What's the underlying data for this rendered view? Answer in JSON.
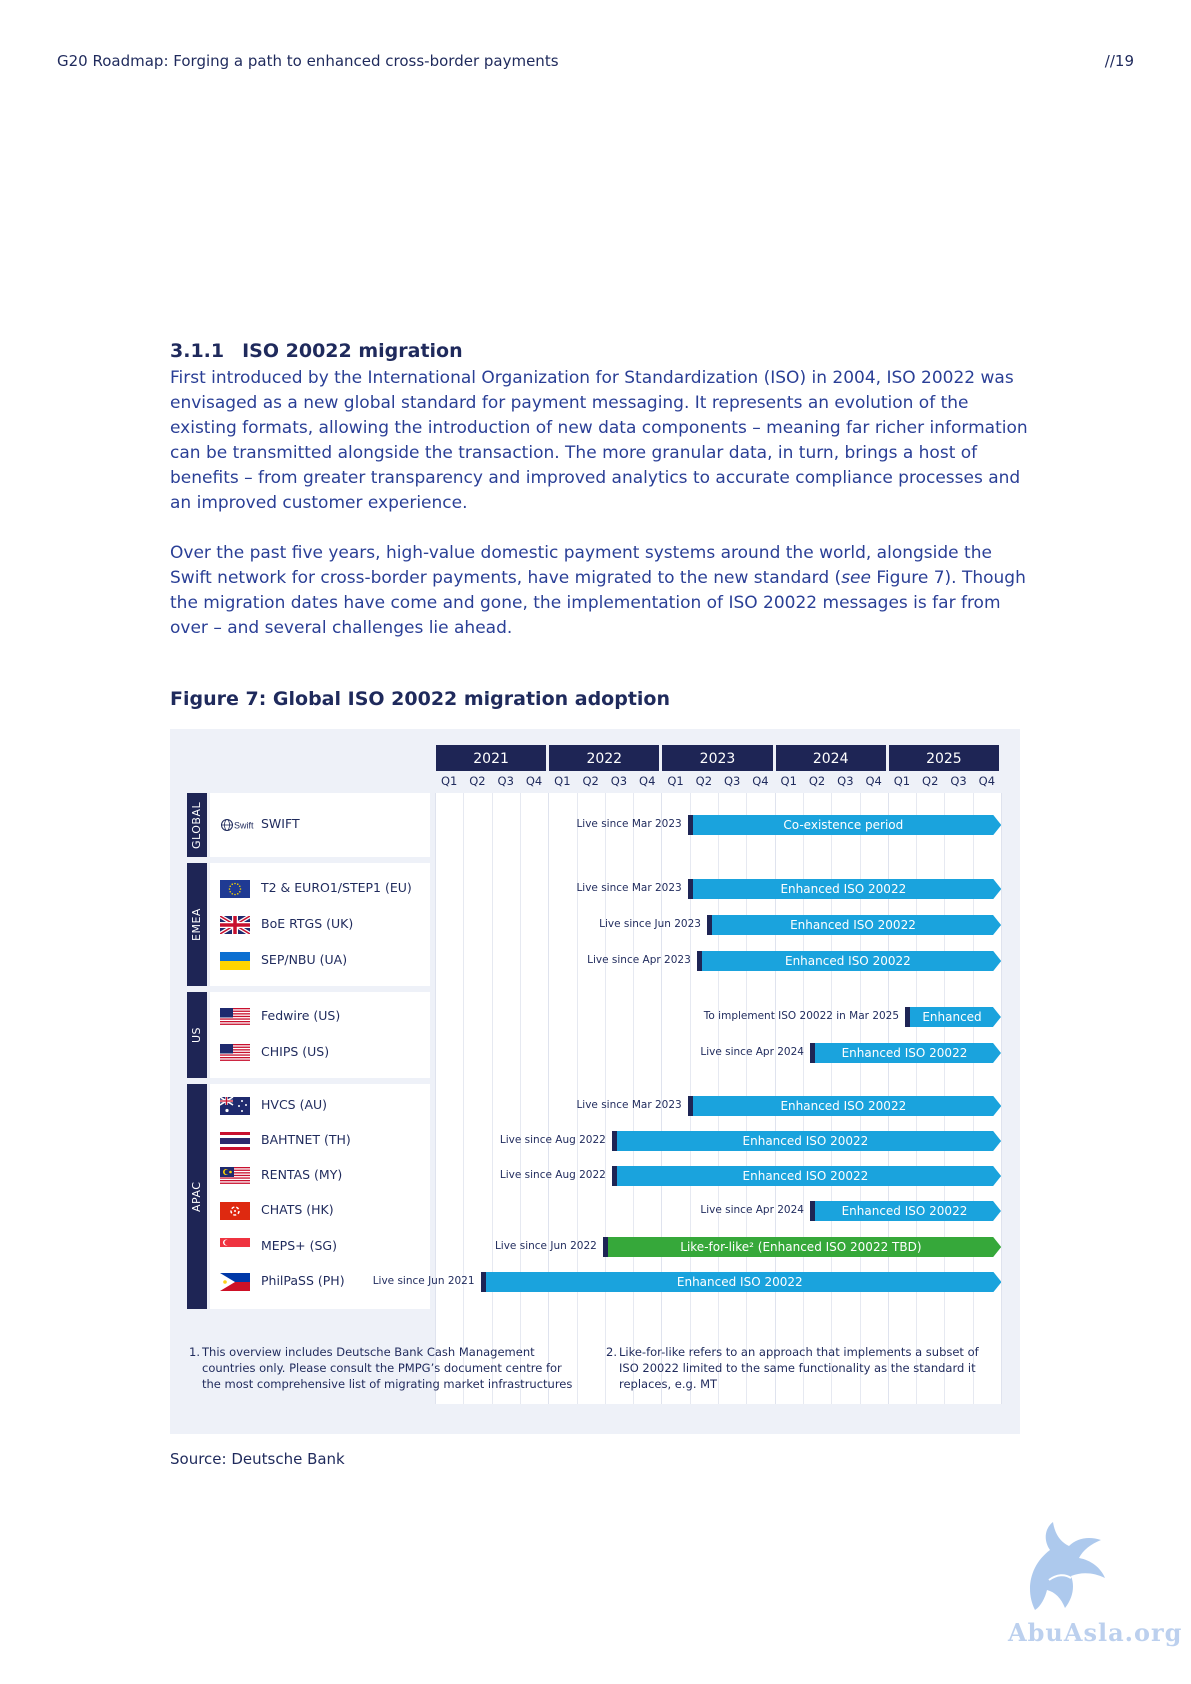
{
  "header": {
    "running_title": "G20 Roadmap: Forging a path to enhanced cross-border payments",
    "page_number": "//19"
  },
  "section": {
    "number": "3.1.1",
    "title": "ISO 20022 migration",
    "p1": "First introduced by the International Organization for Standardization (ISO) in 2004, ISO 20022 was envisaged as a new global standard for payment messaging. It represents an evolution of the existing formats, allowing the introduction of new data components – meaning far richer information can be transmitted alongside the transaction. The more granular data, in turn, brings a host of benefits – from greater transparency and improved analytics to accurate compliance processes and an improved customer experience.",
    "p2_a": "Over the past five years, high-value domestic payment systems around the world, alongside the Swift network for cross-border payments, have migrated to the new standard (",
    "p2_see": "see",
    "p2_b": " Figure 7). Though the migration dates have come and gone, the implementation of ISO 20022 messages is far from over – and several challenges lie ahead."
  },
  "figure": {
    "title": "Figure 7: Global ISO 20022 migration adoption",
    "source": "Source: Deutsche Bank",
    "footnotes": [
      {
        "num": "1.",
        "text": "This overview includes Deutsche Bank Cash Management countries only. Please consult the PMPG’s document centre for the most comprehensive list of migrating market infrastructures"
      },
      {
        "num": "2.",
        "text": "Like-for-like refers to an approach that implements a subset of ISO 20022 limited to the same functionality as the standard it replaces, e.g. MT"
      }
    ],
    "swift_logo_text": "Swift"
  },
  "colors": {
    "navy": "#1e2555",
    "blue": "#1aa3dd",
    "green": "#36a83a",
    "text": "#1f2a5c"
  },
  "chart_data": {
    "type": "gantt",
    "years": [
      "2021",
      "2022",
      "2023",
      "2024",
      "2025"
    ],
    "quarters": [
      "Q1",
      "Q2",
      "Q3",
      "Q4"
    ],
    "regions": [
      {
        "name": "GLOBAL",
        "rows": [
          0
        ]
      },
      {
        "name": "EMEA",
        "rows": [
          1,
          2,
          3
        ]
      },
      {
        "name": "US",
        "rows": [
          4,
          5
        ]
      },
      {
        "name": "APAC",
        "rows": [
          6,
          7,
          8,
          9,
          10,
          11
        ]
      }
    ],
    "rows": [
      {
        "system": "SWIFT",
        "flag": "swift-logo",
        "live_label": "Live since Mar 2023",
        "start": 2023.25,
        "end": 2026.0,
        "bar_label": "Co-existence period",
        "color": "blue"
      },
      {
        "system": "T2 & EURO1/STEP1 (EU)",
        "flag": "eu-flag",
        "live_label": "Live since Mar 2023",
        "start": 2023.25,
        "end": 2026.0,
        "bar_label": "Enhanced ISO 20022",
        "color": "blue"
      },
      {
        "system": "BoE RTGS (UK)",
        "flag": "uk-flag",
        "live_label": "Live since Jun 2023",
        "start": 2023.42,
        "end": 2026.0,
        "bar_label": "Enhanced ISO 20022",
        "color": "blue"
      },
      {
        "system": "SEP/NBU (UA)",
        "flag": "ua-flag",
        "live_label": "Live since Apr 2023",
        "start": 2023.33,
        "end": 2026.0,
        "bar_label": "Enhanced ISO 20022",
        "color": "blue"
      },
      {
        "system": "Fedwire (US)",
        "flag": "us-flag",
        "live_label": "To implement ISO 20022 in Mar 2025",
        "start": 2025.17,
        "end": 2026.0,
        "bar_label": "Enhanced",
        "color": "blue"
      },
      {
        "system": "CHIPS (US)",
        "flag": "us-flag",
        "live_label": "Live since Apr 2024",
        "start": 2024.33,
        "end": 2026.0,
        "bar_label": "Enhanced ISO 20022",
        "color": "blue"
      },
      {
        "system": "HVCS (AU)",
        "flag": "au-flag",
        "live_label": "Live since Mar 2023",
        "start": 2023.25,
        "end": 2026.0,
        "bar_label": "Enhanced ISO 20022",
        "color": "blue"
      },
      {
        "system": "BAHTNET (TH)",
        "flag": "th-flag",
        "live_label": "Live since Aug 2022",
        "start": 2022.58,
        "end": 2026.0,
        "bar_label": "Enhanced ISO 20022",
        "color": "blue"
      },
      {
        "system": "RENTAS (MY)",
        "flag": "my-flag",
        "live_label": "Live since Aug 2022",
        "start": 2022.58,
        "end": 2026.0,
        "bar_label": "Enhanced ISO 20022",
        "color": "blue"
      },
      {
        "system": "CHATS (HK)",
        "flag": "hk-flag",
        "live_label": "Live since Apr 2024",
        "start": 2024.33,
        "end": 2026.0,
        "bar_label": "Enhanced ISO 20022",
        "color": "blue"
      },
      {
        "system": "MEPS+ (SG)",
        "flag": "sg-flag",
        "live_label": "Live since Jun 2022",
        "start": 2022.5,
        "end": 2026.0,
        "bar_label": "Like-for-like² (Enhanced ISO 20022 TBD)",
        "color": "green"
      },
      {
        "system": "PhilPaSS (PH)",
        "flag": "ph-flag",
        "live_label": "Live since Jun 2021",
        "start": 2021.42,
        "end": 2026.0,
        "bar_label": "Enhanced ISO 20022",
        "color": "blue"
      }
    ]
  },
  "watermark": {
    "text": "AbuAsla.org"
  }
}
